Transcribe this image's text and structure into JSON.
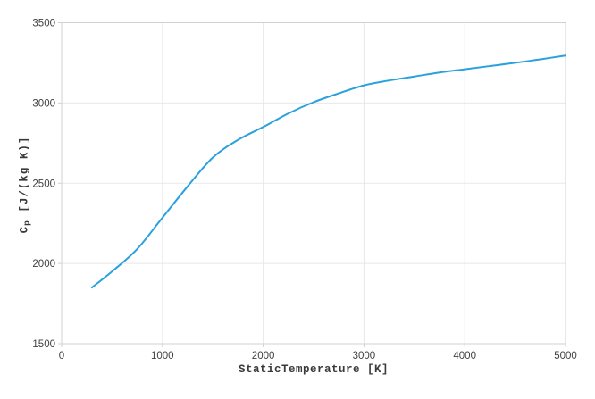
{
  "chart_data": {
    "type": "line",
    "title": "",
    "xlabel": "StaticTemperature [K]",
    "ylabel": "Cp [J/(kg K)]",
    "ylabel_parts": {
      "base": "C",
      "sub": "p",
      "rest": " [J/(kg K)]"
    },
    "series_name": "Cp",
    "x": [
      300,
      500,
      750,
      1000,
      1250,
      1500,
      1750,
      2000,
      2250,
      2500,
      2750,
      3000,
      3250,
      3500,
      3750,
      4000,
      4250,
      4500,
      4750,
      5000
    ],
    "y": [
      1850,
      1950,
      2090,
      2285,
      2480,
      2660,
      2770,
      2850,
      2935,
      3005,
      3060,
      3110,
      3140,
      3165,
      3190,
      3210,
      3230,
      3250,
      3272,
      3295
    ],
    "xlim": [
      0,
      5000
    ],
    "ylim": [
      1500,
      3500
    ],
    "xticks": [
      0,
      1000,
      2000,
      3000,
      4000,
      5000
    ],
    "yticks": [
      1500,
      2000,
      2500,
      3000,
      3500
    ],
    "grid": true,
    "legend": "none",
    "line_color": "#2aa1dc",
    "colors": {
      "grid": "#e8e8e8",
      "axis": "#d2d2d2",
      "text": "#3f3f3f",
      "background": "#ffffff"
    }
  }
}
